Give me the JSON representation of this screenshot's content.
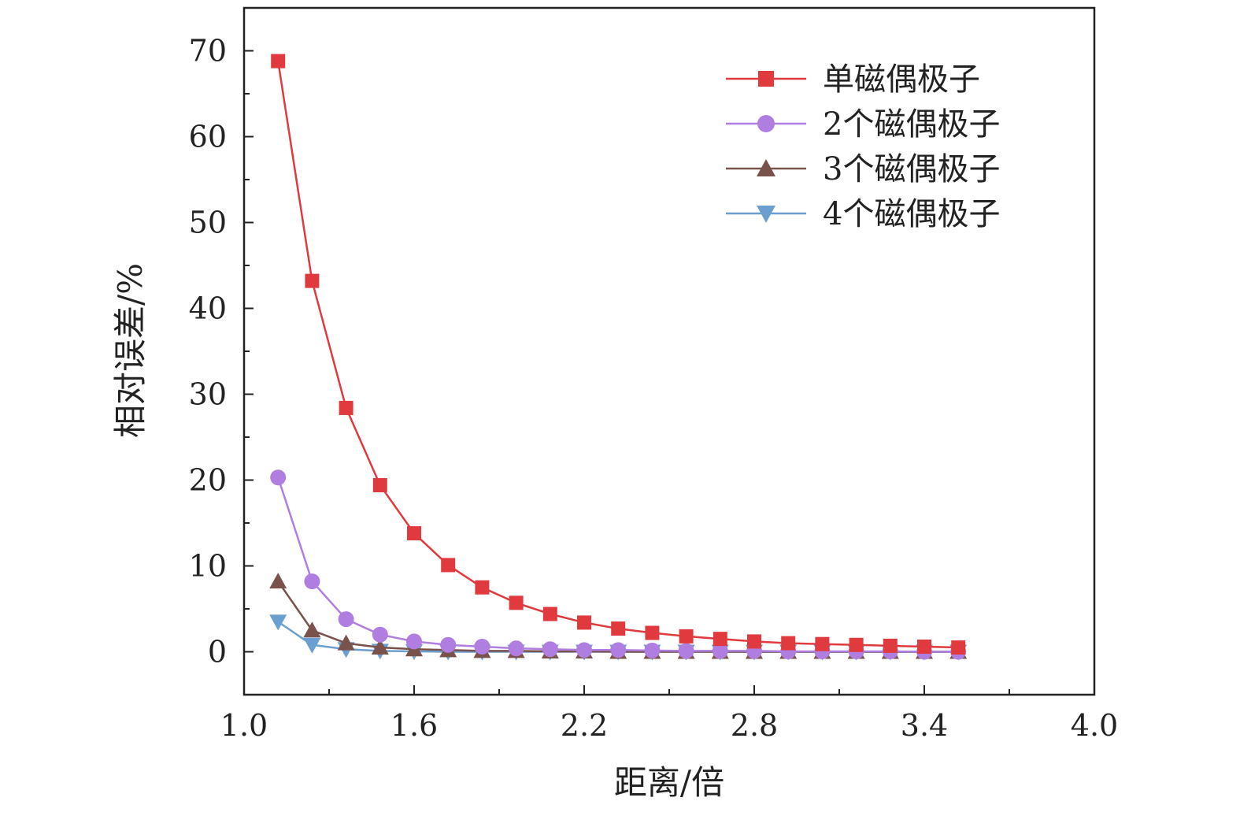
{
  "chart_data": {
    "type": "line",
    "xlabel": "距离/倍",
    "ylabel": "相对误差/%",
    "xlim": [
      1.0,
      4.0
    ],
    "ylim": [
      -5,
      75
    ],
    "xticks": [
      "1.0",
      "1.6",
      "2.2",
      "2.8",
      "3.4",
      "4.0"
    ],
    "xtick_values": [
      1.0,
      1.6,
      2.2,
      2.8,
      3.4,
      4.0
    ],
    "yticks": [
      "0",
      "10",
      "20",
      "30",
      "40",
      "50",
      "60",
      "70"
    ],
    "ytick_values": [
      0,
      10,
      20,
      30,
      40,
      50,
      60,
      70
    ],
    "legend_position": "top-right",
    "grid": false,
    "x": [
      1.12,
      1.24,
      1.36,
      1.48,
      1.6,
      1.72,
      1.84,
      1.96,
      2.08,
      2.2,
      2.32,
      2.44,
      2.56,
      2.68,
      2.8,
      2.92,
      3.04,
      3.16,
      3.28,
      3.4,
      3.52
    ],
    "series": [
      {
        "name": "单磁偶极子",
        "color": "#e03a3e",
        "marker": "square",
        "values": [
          68.8,
          43.2,
          28.4,
          19.4,
          13.8,
          10.1,
          7.5,
          5.7,
          4.4,
          3.4,
          2.7,
          2.2,
          1.8,
          1.5,
          1.2,
          1.0,
          0.9,
          0.8,
          0.7,
          0.6,
          0.5
        ]
      },
      {
        "name": "2个磁偶极子",
        "color": "#b07ee0",
        "marker": "circle",
        "values": [
          20.3,
          8.2,
          3.8,
          2.0,
          1.2,
          0.8,
          0.6,
          0.4,
          0.3,
          0.2,
          0.2,
          0.15,
          0.1,
          0.1,
          0.1,
          0.05,
          0.05,
          0.05,
          0.05,
          0.0,
          0.0
        ]
      },
      {
        "name": "3个磁偶极子",
        "color": "#7a524c",
        "marker": "triangle-up",
        "values": [
          8.2,
          2.5,
          1.0,
          0.5,
          0.3,
          0.2,
          0.1,
          0.1,
          0.05,
          0.05,
          0.0,
          0.0,
          0.0,
          0.0,
          0.0,
          0.0,
          0.0,
          0.0,
          0.0,
          0.0,
          0.0
        ]
      },
      {
        "name": "4个磁偶极子",
        "color": "#6b9fd0",
        "marker": "triangle-down",
        "values": [
          3.5,
          0.8,
          0.3,
          0.1,
          0.05,
          0.0,
          0.0,
          0.0,
          0.0,
          0.0,
          0.0,
          0.0,
          0.0,
          0.0,
          0.0,
          0.0,
          0.0,
          0.0,
          0.0,
          0.0,
          0.0
        ]
      }
    ]
  }
}
